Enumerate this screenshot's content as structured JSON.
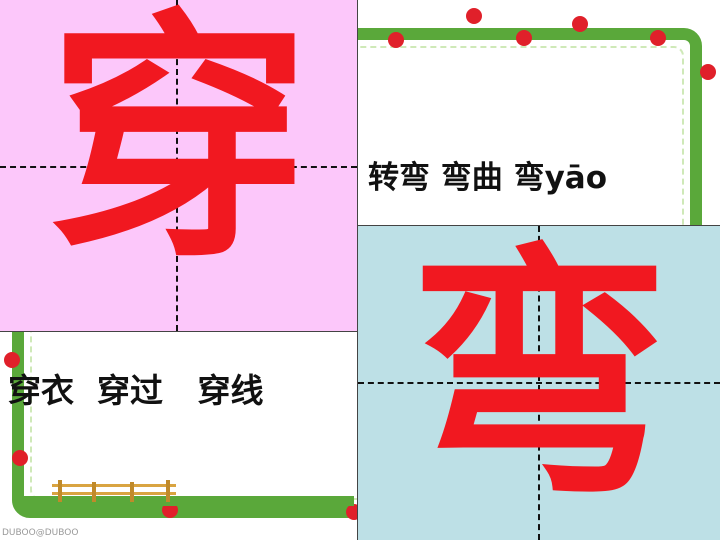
{
  "cards": {
    "chuan": {
      "character": "穿",
      "background": "#fcc7fa",
      "words": "穿衣  穿过   穿线"
    },
    "wan": {
      "character": "弯",
      "background": "#bde0e6",
      "words": "转弯 弯曲 弯yāo"
    }
  },
  "colors": {
    "character": "#f11820",
    "frame": "#5aa83a",
    "berry": "#e0202a"
  },
  "footer": {
    "watermark": "DUBOO@DUBOO"
  }
}
